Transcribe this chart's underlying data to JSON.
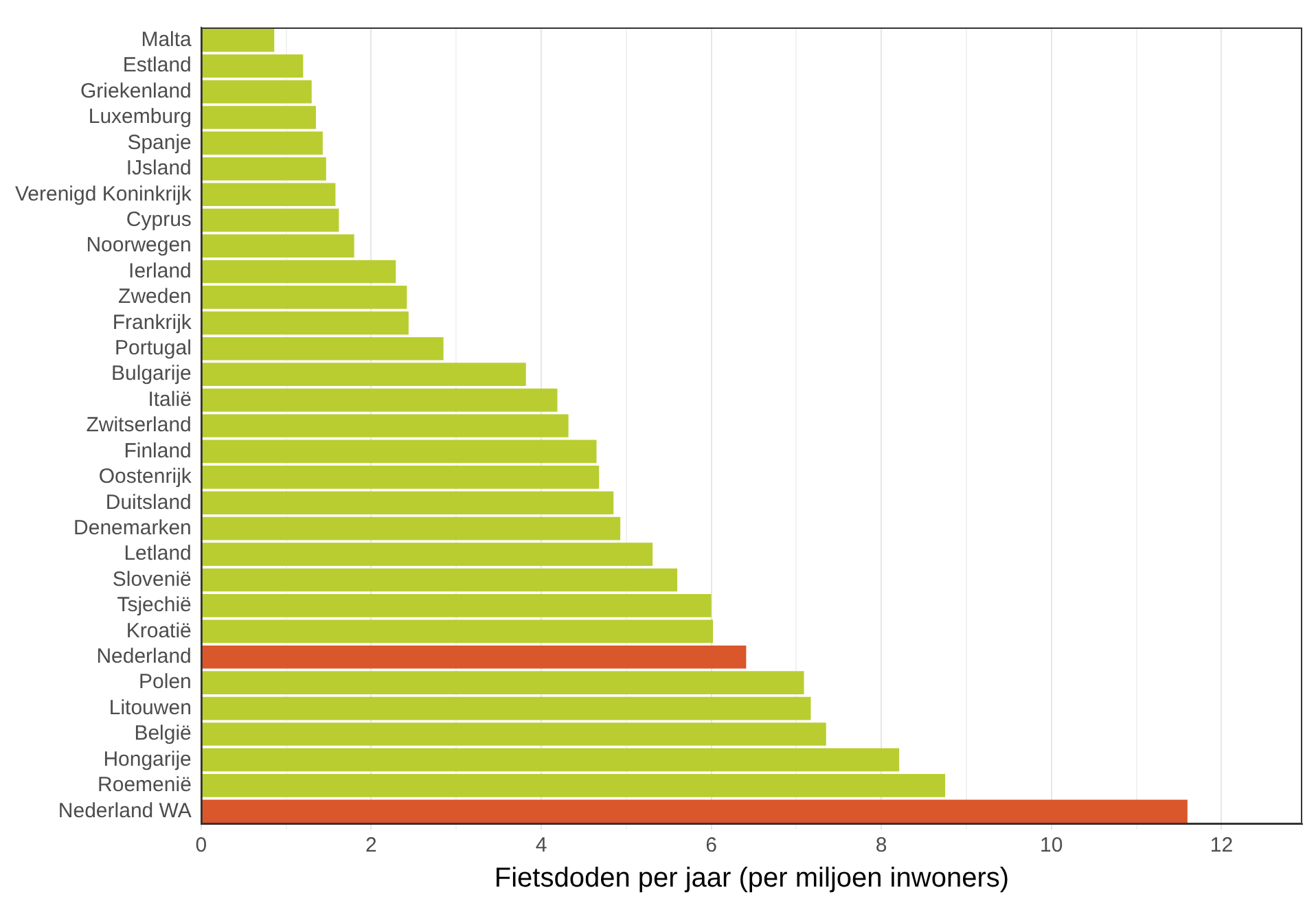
{
  "chart_data": {
    "type": "bar",
    "orientation": "horizontal",
    "xlabel": "Fietsdoden per jaar (per miljoen inwoners)",
    "categories": [
      "Malta",
      "Estland",
      "Griekenland",
      "Luxemburg",
      "Spanje",
      "IJsland",
      "Verenigd Koninkrijk",
      "Cyprus",
      "Noorwegen",
      "Ierland",
      "Zweden",
      "Frankrijk",
      "Portugal",
      "Bulgarije",
      "Italië",
      "Zwitserland",
      "Finland",
      "Oostenrijk",
      "Duitsland",
      "Denemarken",
      "Letland",
      "Slovenië",
      "Tsjechië",
      "Kroatië",
      "Nederland",
      "Polen",
      "Litouwen",
      "België",
      "Hongarije",
      "Roemenië",
      "Nederland WA"
    ],
    "values": [
      0.86,
      1.2,
      1.3,
      1.35,
      1.43,
      1.47,
      1.58,
      1.62,
      1.8,
      2.29,
      2.42,
      2.44,
      2.85,
      3.82,
      4.19,
      4.32,
      4.65,
      4.68,
      4.85,
      4.93,
      5.31,
      5.6,
      6.0,
      6.02,
      6.41,
      7.09,
      7.17,
      7.35,
      8.21,
      8.75,
      11.6
    ],
    "colors": [
      "#b9cd31",
      "#b9cd31",
      "#b9cd31",
      "#b9cd31",
      "#b9cd31",
      "#b9cd31",
      "#b9cd31",
      "#b9cd31",
      "#b9cd31",
      "#b9cd31",
      "#b9cd31",
      "#b9cd31",
      "#b9cd31",
      "#b9cd31",
      "#b9cd31",
      "#b9cd31",
      "#b9cd31",
      "#b9cd31",
      "#b9cd31",
      "#b9cd31",
      "#b9cd31",
      "#b9cd31",
      "#b9cd31",
      "#b9cd31",
      "#d9572b",
      "#b9cd31",
      "#b9cd31",
      "#b9cd31",
      "#b9cd31",
      "#b9cd31",
      "#d9572b"
    ],
    "xlim": [
      0,
      12.95
    ],
    "xticks": [
      0,
      {
        "value": 1,
        "label": null
      },
      2,
      {
        "value": 3,
        "label": null
      },
      4,
      {
        "value": 5,
        "label": null
      },
      6,
      {
        "value": 7,
        "label": null
      },
      8,
      {
        "value": 9,
        "label": null
      },
      10,
      {
        "value": 11,
        "label": null
      },
      12
    ],
    "grid": "x",
    "legend": false
  }
}
